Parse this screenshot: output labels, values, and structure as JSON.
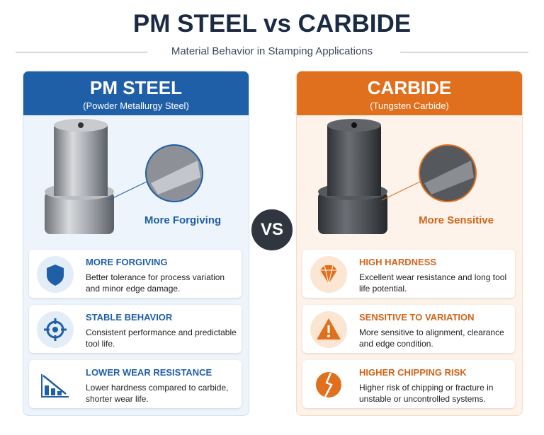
{
  "header": {
    "title": "PM STEEL vs CARBIDE",
    "subtitle": "Material Behavior in Stamping Applications"
  },
  "vs": "VS",
  "panels": [
    {
      "title": "PM STEEL",
      "subtitle": "(Powder Metallurgy Steel)",
      "callout": "More Forgiving",
      "features": [
        {
          "title": "MORE FORGIVING",
          "text": "Better tolerance for process variation and minor edge damage."
        },
        {
          "title": "STABLE BEHAVIOR",
          "text": "Consistent performance and predictable tool life."
        },
        {
          "title": "LOWER WEAR RESISTANCE",
          "text": "Lower hardness compared to carbide, shorter wear life."
        }
      ]
    },
    {
      "title": "CARBIDE",
      "subtitle": "(Tungsten Carbide)",
      "callout": "More Sensitive",
      "features": [
        {
          "title": "HIGH HARDNESS",
          "text": "Excellent wear resistance and long tool life potential."
        },
        {
          "title": "SENSITIVE TO VARIATION",
          "text": "More sensitive to alignment, clearance and edge condition."
        },
        {
          "title": "HIGHER CHIPPING RISK",
          "text": "Higher risk of chipping or fracture in unstable or uncontrolled systems."
        }
      ]
    }
  ]
}
